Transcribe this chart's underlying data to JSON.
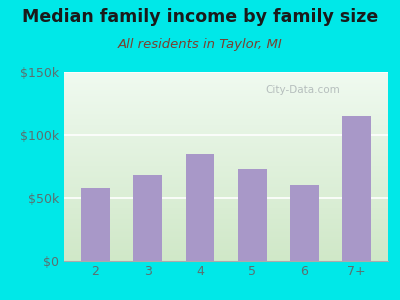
{
  "categories": [
    "2",
    "3",
    "4",
    "5",
    "6",
    "7+"
  ],
  "values": [
    58000,
    68000,
    85000,
    73000,
    60000,
    115000
  ],
  "bar_color": "#a898c8",
  "title": "Median family income by family size",
  "subtitle": "All residents in Taylor, MI",
  "title_fontsize": 12.5,
  "subtitle_fontsize": 9.5,
  "title_color": "#1a1a1a",
  "subtitle_color": "#7a4030",
  "outer_bg": "#00e8e8",
  "plot_bg_top": "#f0faf0",
  "plot_bg_bottom": "#d0e8c8",
  "ylim": [
    0,
    150000
  ],
  "yticks": [
    0,
    50000,
    100000,
    150000
  ],
  "ytick_labels": [
    "$0",
    "$50k",
    "$100k",
    "$150k"
  ],
  "watermark": "City-Data.com",
  "tick_color": "#5a7070"
}
